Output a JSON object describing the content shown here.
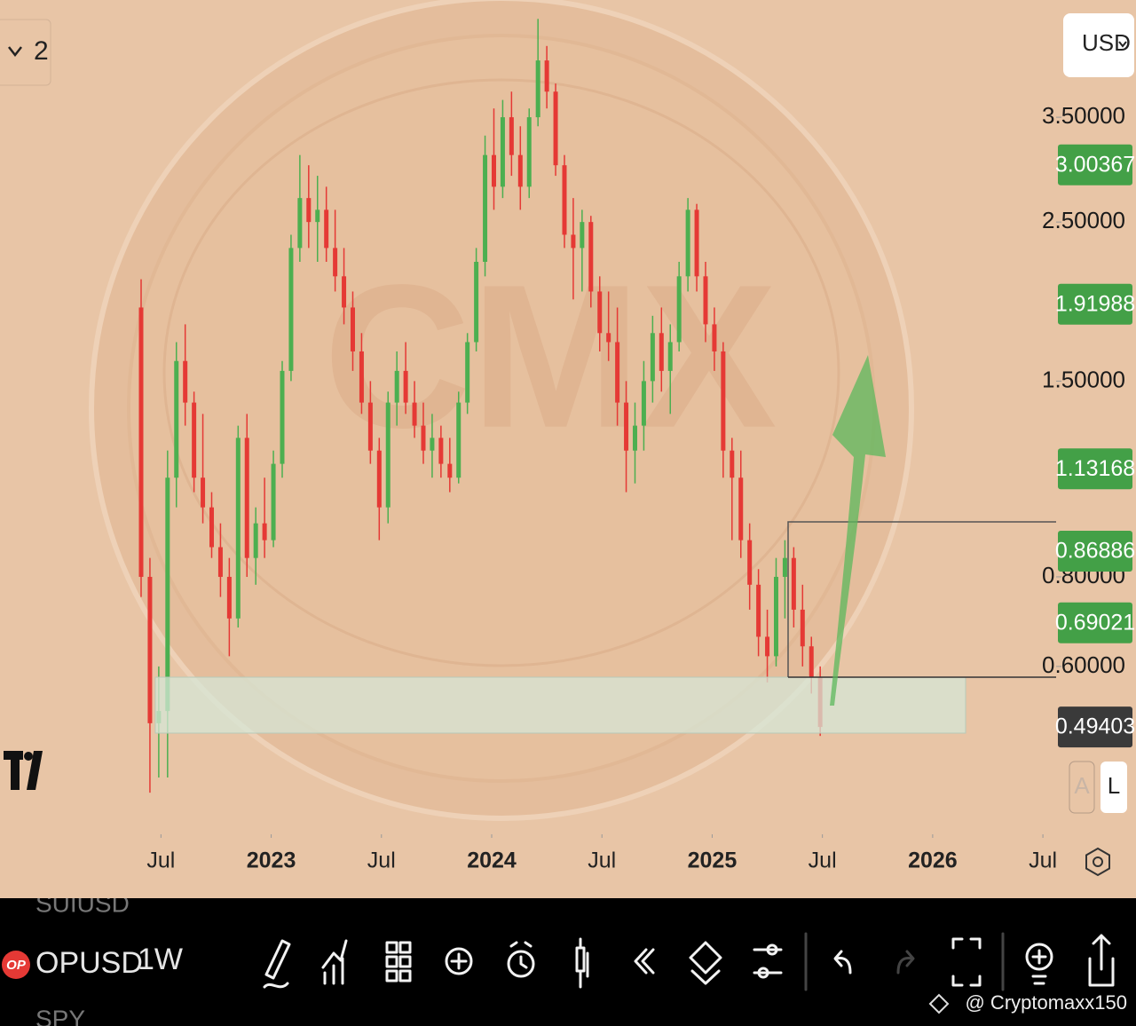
{
  "chart_data": {
    "type": "candlestick",
    "log_scale": true,
    "up_color": "#4caf50",
    "down_color": "#e53935",
    "x": [
      2022.41,
      2022.45,
      2022.49,
      2022.53,
      2022.57,
      2022.61,
      2022.65,
      2022.69,
      2022.73,
      2022.77,
      2022.81,
      2022.85,
      2022.89,
      2022.93,
      2022.97,
      2023.01,
      2023.05,
      2023.09,
      2023.13,
      2023.17,
      2023.21,
      2023.25,
      2023.29,
      2023.33,
      2023.37,
      2023.41,
      2023.45,
      2023.49,
      2023.53,
      2023.57,
      2023.61,
      2023.65,
      2023.69,
      2023.73,
      2023.77,
      2023.81,
      2023.85,
      2023.89,
      2023.93,
      2023.97,
      2024.01,
      2024.05,
      2024.09,
      2024.13,
      2024.17,
      2024.21,
      2024.25,
      2024.29,
      2024.33,
      2024.37,
      2024.41,
      2024.45,
      2024.49,
      2024.53,
      2024.57,
      2024.61,
      2024.65,
      2024.69,
      2024.73,
      2024.77,
      2024.81,
      2024.85,
      2024.89,
      2024.93,
      2024.97,
      2025.01,
      2025.05,
      2025.09,
      2025.13,
      2025.17,
      2025.21,
      2025.25,
      2025.29,
      2025.33,
      2025.37,
      2025.41,
      2025.45,
      2025.49
    ],
    "open": [
      1.9,
      0.8,
      0.5,
      0.52,
      1.1,
      1.6,
      1.4,
      1.1,
      1.0,
      0.88,
      0.8,
      0.7,
      1.25,
      0.85,
      0.95,
      0.9,
      1.15,
      1.55,
      2.3,
      2.7,
      2.5,
      2.6,
      2.3,
      2.1,
      1.9,
      1.65,
      1.4,
      1.2,
      1.0,
      1.4,
      1.55,
      1.4,
      1.3,
      1.2,
      1.25,
      1.15,
      1.1,
      1.4,
      1.7,
      2.2,
      3.1,
      2.8,
      3.5,
      3.1,
      2.8,
      3.5,
      4.2,
      3.8,
      3.0,
      2.4,
      2.3,
      2.5,
      2.0,
      1.75,
      1.7,
      1.4,
      1.2,
      1.3,
      1.5,
      1.75,
      1.55,
      1.7,
      2.1,
      2.6,
      2.1,
      1.8,
      1.65,
      1.2,
      1.1,
      0.9,
      0.78,
      0.66,
      0.62,
      0.8,
      0.85,
      0.72,
      0.64,
      0.58
    ],
    "high": [
      2.08,
      0.85,
      0.6,
      1.2,
      1.7,
      1.8,
      1.45,
      1.35,
      1.05,
      0.95,
      0.85,
      1.3,
      1.35,
      1.0,
      1.1,
      1.2,
      1.6,
      2.4,
      3.1,
      3.0,
      2.9,
      2.8,
      2.6,
      2.3,
      2.0,
      1.75,
      1.5,
      1.25,
      1.45,
      1.65,
      1.7,
      1.5,
      1.4,
      1.35,
      1.3,
      1.25,
      1.45,
      1.75,
      2.3,
      3.3,
      3.6,
      3.7,
      3.8,
      3.4,
      3.6,
      4.8,
      4.4,
      3.9,
      3.1,
      2.7,
      2.6,
      2.55,
      2.1,
      2.0,
      1.9,
      1.5,
      1.4,
      1.6,
      1.85,
      1.9,
      1.8,
      2.2,
      2.7,
      2.65,
      2.2,
      1.9,
      1.7,
      1.25,
      1.2,
      0.95,
      0.82,
      0.72,
      0.85,
      0.9,
      0.88,
      0.78,
      0.66,
      0.6
    ],
    "low": [
      0.75,
      0.4,
      0.42,
      0.42,
      1.0,
      1.3,
      1.05,
      0.95,
      0.85,
      0.75,
      0.62,
      0.68,
      0.8,
      0.78,
      0.85,
      0.88,
      1.1,
      1.5,
      2.2,
      2.3,
      2.2,
      2.2,
      2.0,
      1.8,
      1.55,
      1.35,
      1.15,
      0.9,
      0.95,
      1.3,
      1.35,
      1.25,
      1.15,
      1.1,
      1.1,
      1.05,
      1.08,
      1.35,
      1.65,
      2.1,
      2.6,
      2.7,
      2.9,
      2.6,
      2.7,
      3.4,
      3.6,
      2.9,
      2.3,
      1.95,
      2.0,
      1.9,
      1.65,
      1.6,
      1.3,
      1.05,
      1.08,
      1.2,
      1.4,
      1.45,
      1.35,
      1.65,
      2.0,
      2.0,
      1.7,
      1.55,
      1.1,
      0.9,
      0.85,
      0.72,
      0.62,
      0.57,
      0.6,
      0.7,
      0.68,
      0.6,
      0.55,
      0.48
    ],
    "close": [
      0.8,
      0.5,
      0.52,
      1.1,
      1.6,
      1.4,
      1.1,
      1.0,
      0.88,
      0.8,
      0.7,
      1.25,
      0.85,
      0.95,
      0.9,
      1.15,
      1.55,
      2.3,
      2.7,
      2.5,
      2.6,
      2.3,
      2.1,
      1.9,
      1.65,
      1.4,
      1.2,
      1.0,
      1.4,
      1.55,
      1.4,
      1.3,
      1.2,
      1.25,
      1.15,
      1.1,
      1.4,
      1.7,
      2.2,
      3.1,
      2.8,
      3.5,
      3.1,
      2.8,
      3.5,
      4.2,
      3.8,
      3.0,
      2.4,
      2.3,
      2.5,
      2.0,
      1.75,
      1.7,
      1.4,
      1.2,
      1.3,
      1.5,
      1.75,
      1.55,
      1.7,
      2.1,
      2.6,
      2.1,
      1.8,
      1.65,
      1.2,
      1.1,
      0.9,
      0.78,
      0.66,
      0.62,
      0.8,
      0.85,
      0.72,
      0.64,
      0.58,
      0.49403
    ],
    "xlim": [
      2021.77,
      2026.56
    ],
    "xticks": [
      {
        "value": 2022.5,
        "label": "Jul"
      },
      2023,
      {
        "value": 2023.5,
        "label": "Jul"
      },
      2024,
      {
        "value": 2024.5,
        "label": "Jul"
      },
      2025,
      {
        "value": 2025.5,
        "label": "Jul"
      },
      2026,
      {
        "value": 2026.5,
        "label": "Jul"
      }
    ],
    "ylim": [
      0.35,
      5.1
    ],
    "yticks": [
      {
        "value": 3.5,
        "label": "3.50000"
      },
      {
        "value": 2.5,
        "label": "2.50000"
      },
      {
        "value": 1.5,
        "label": "1.50000"
      },
      {
        "value": 0.8,
        "label": "0.80000"
      },
      {
        "value": 0.6,
        "label": "0.60000"
      }
    ],
    "price_tags": [
      {
        "value": 3.00367,
        "color": "#43a047"
      },
      {
        "value": 1.91988,
        "color": "#43a047"
      },
      {
        "value": 1.13168,
        "color": "#43a047"
      },
      {
        "value": 0.86886,
        "color": "#43a047"
      },
      {
        "value": 0.69021,
        "color": "#43a047"
      },
      {
        "value": 0.49403,
        "color": "#3a3a3a"
      }
    ]
  },
  "ui": {
    "interval_count": "2",
    "currency": "USD",
    "auto_button": "A",
    "log_button": "L",
    "watermark_text": "CMX",
    "toolbar": {
      "prev_symbol": "SUIUSD",
      "symbol_badge": "OP",
      "symbol": "OPUSD",
      "interval": "1W",
      "next_symbol": "SPY"
    },
    "credit": "@ Cryptomaxx150"
  }
}
